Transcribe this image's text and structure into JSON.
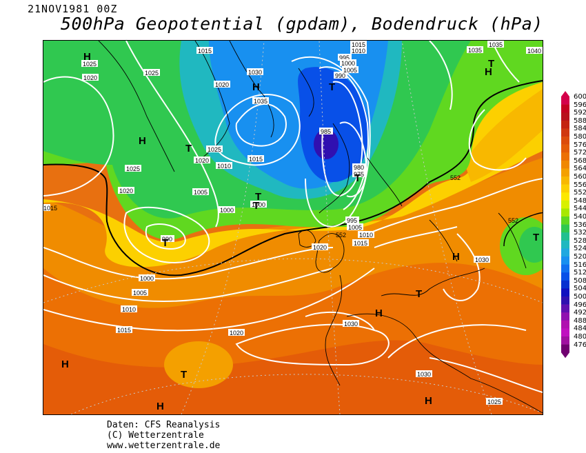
{
  "header": {
    "date": "21NOV1981 00Z",
    "title": "500hPa Geopotential (gpdam), Bodendruck (hPa)"
  },
  "credits": {
    "line1": "Daten: CFS Reanalysis",
    "line2": "(C) Wetterzentrale",
    "line3": "www.wetterzentrale.de"
  },
  "legend": {
    "levels": [
      600,
      596,
      592,
      588,
      584,
      580,
      576,
      572,
      568,
      564,
      560,
      556,
      552,
      548,
      544,
      540,
      536,
      532,
      528,
      524,
      520,
      516,
      512,
      508,
      504,
      500,
      496,
      492,
      488,
      484,
      480,
      476
    ],
    "colors": [
      "#d4004a",
      "#c40020",
      "#b8101c",
      "#c42410",
      "#d03810",
      "#dc4c0c",
      "#e45c08",
      "#ec7004",
      "#f08800",
      "#f4a000",
      "#f8b800",
      "#fcd000",
      "#fce800",
      "#d8f000",
      "#a8e800",
      "#60d820",
      "#30c850",
      "#20c090",
      "#20b8c0",
      "#20a8e0",
      "#1890f0",
      "#1070f0",
      "#0850e8",
      "#0830d0",
      "#1010c0",
      "#3010b0",
      "#6010b0",
      "#9010b0",
      "#b010b0",
      "#c010c0",
      "#a010a0",
      "#700070"
    ]
  },
  "map": {
    "pressure_labels": [
      "1015",
      "1025",
      "1020",
      "1025",
      "1030",
      "1035",
      "1015",
      "1010",
      "995",
      "990",
      "1000",
      "1005",
      "1035",
      "1040",
      "1035",
      "1025",
      "1020",
      "1020",
      "1025",
      "1020",
      "1010",
      "1015",
      "1005",
      "1000",
      "1000",
      "985",
      "980",
      "975",
      "1015",
      "1010",
      "1005",
      "995",
      "990",
      "1000",
      "1005",
      "1010",
      "1015",
      "1020",
      "1030",
      "1030",
      "1030",
      "1020",
      "1015",
      "1025",
      "552",
      "552",
      "552"
    ],
    "systems": [
      "H",
      "H",
      "H",
      "T",
      "H",
      "T",
      "T",
      "T",
      "T",
      "T",
      "H",
      "T",
      "H",
      "T",
      "H",
      "T",
      "H",
      "H",
      "T"
    ]
  }
}
